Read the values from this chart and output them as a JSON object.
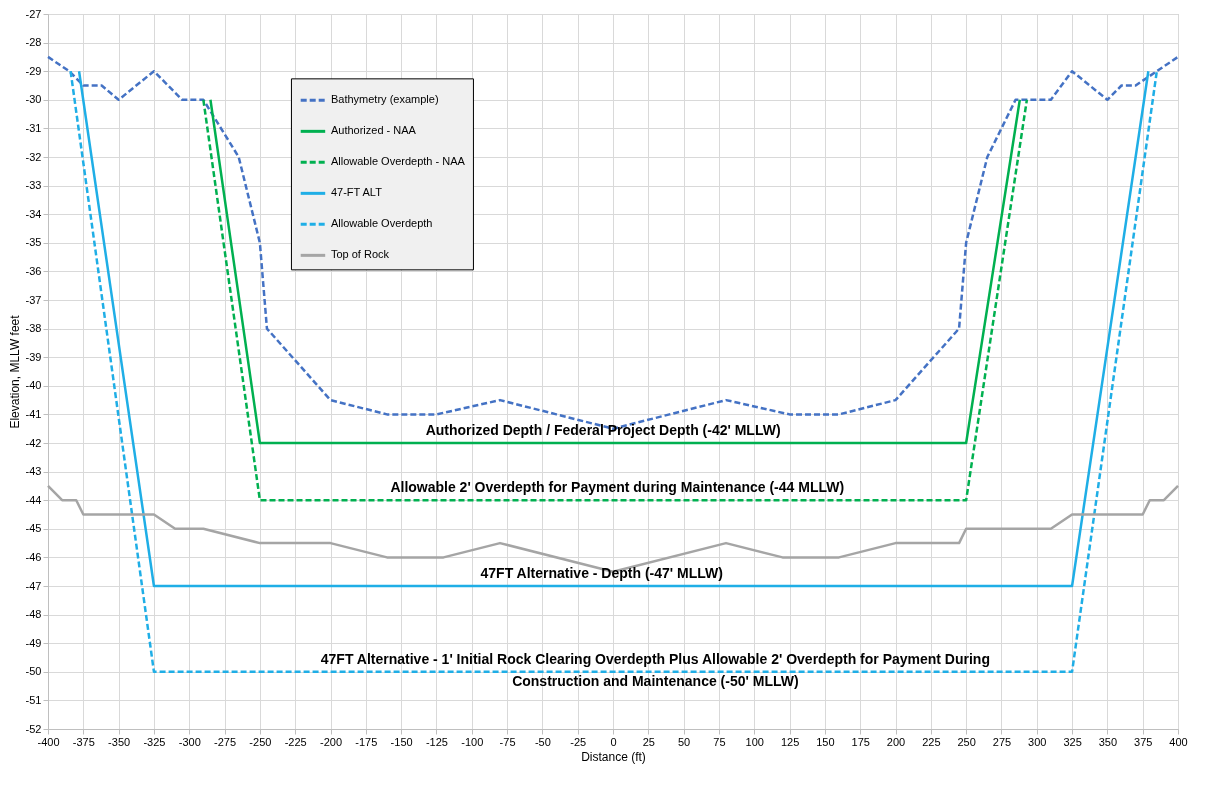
{
  "chart_data": {
    "type": "line",
    "xlabel": "Distance (ft)",
    "ylabel": "Elevation, MLLW feet",
    "xlim": [
      -400,
      400
    ],
    "xticks": [
      -400,
      -375,
      -350,
      -325,
      -300,
      -275,
      -250,
      -225,
      -200,
      -175,
      -150,
      -125,
      -100,
      -75,
      -50,
      -25,
      0,
      25,
      50,
      75,
      100,
      125,
      150,
      175,
      200,
      225,
      250,
      275,
      300,
      325,
      350,
      375,
      400
    ],
    "ylim": [
      -52,
      -27
    ],
    "yticks": [
      -52,
      -51,
      -50,
      -49,
      -48,
      -47,
      -46,
      -45,
      -44,
      -43,
      -42,
      -41,
      -40,
      -39,
      -38,
      -37,
      -36,
      -35,
      -34,
      -33,
      -32,
      -31,
      -30,
      -29,
      -28,
      -27
    ],
    "grid": true,
    "legend": "top left",
    "marker": "none",
    "series": [
      {
        "name": "Bathymetry (example)",
        "color": "#4472c4",
        "line_style": "dashed",
        "x": [
          -400,
          -385,
          -375,
          -362,
          -350,
          -325,
          -305,
          -290,
          -265,
          -250,
          -245,
          -200,
          -160,
          -125,
          -80,
          -40,
          0,
          40,
          80,
          125,
          160,
          200,
          245,
          250,
          265,
          285,
          310,
          325,
          350,
          360,
          370,
          385,
          400
        ],
        "values": [
          -28.5,
          -29,
          -29.5,
          -29.5,
          -30,
          -29,
          -30,
          -30,
          -32,
          -35,
          -38,
          -40.5,
          -41,
          -41,
          -40.5,
          -41,
          -41.5,
          -41,
          -40.5,
          -41,
          -41,
          -40.5,
          -38,
          -35,
          -32,
          -30,
          -30,
          -29,
          -30,
          -29.5,
          -29.5,
          -29,
          -28.5
        ]
      },
      {
        "name": "Authorized - NAA",
        "color": "#00b050",
        "line_style": "solid",
        "x": [
          -285,
          -250,
          250,
          288
        ],
        "values": [
          -30,
          -42,
          -42,
          -30
        ]
      },
      {
        "name": "Allowable Overdepth - NAA",
        "color": "#00b050",
        "line_style": "dashed",
        "x": [
          -290,
          -250,
          250,
          293
        ],
        "values": [
          -30,
          -44,
          -44,
          -30
        ]
      },
      {
        "name": "47-FT ALT",
        "color": "#1faee6",
        "line_style": "solid",
        "x": [
          -378,
          -325,
          325,
          379
        ],
        "values": [
          -29,
          -47,
          -47,
          -29
        ]
      },
      {
        "name": "Allowable Overdepth",
        "color": "#1faee6",
        "line_style": "dashed",
        "x": [
          -384,
          -325,
          325,
          385
        ],
        "values": [
          -29,
          -50,
          -50,
          -29
        ]
      },
      {
        "name": "Top of Rock",
        "color": "#a5a5a5",
        "line_style": "solid",
        "x": [
          -400,
          -390,
          -380,
          -375,
          -325,
          -310,
          -290,
          -250,
          -200,
          -160,
          -120,
          -80,
          0,
          80,
          120,
          160,
          200,
          245,
          250,
          310,
          325,
          375,
          380,
          390,
          400
        ],
        "values": [
          -43.5,
          -44,
          -44,
          -44.5,
          -44.5,
          -45,
          -45,
          -45.5,
          -45.5,
          -46,
          -46,
          -45.5,
          -46.5,
          -45.5,
          -46,
          -46,
          -45.5,
          -45.5,
          -45,
          -45,
          -44.5,
          -44.5,
          -44,
          -44,
          -43.5
        ]
      }
    ],
    "annotations": [
      {
        "text": "Authorized Depth / Federal Project Depth (-42' MLLW)",
        "x": -7,
        "y": -42
      },
      {
        "text": "Allowable 2' Overdepth for Payment during Maintenance (-44 MLLW)",
        "x": 3,
        "y": -44
      },
      {
        "text": "47FT Alternative - Depth (-47' MLLW)",
        "x": -8,
        "y": -47
      },
      {
        "text": "47FT Alternative - 1' Initial Rock Clearing Overdepth Plus Allowable 2' Overdepth for Payment During\nConstruction and Maintenance (-50' MLLW)",
        "x": 30,
        "y": -50
      }
    ]
  }
}
